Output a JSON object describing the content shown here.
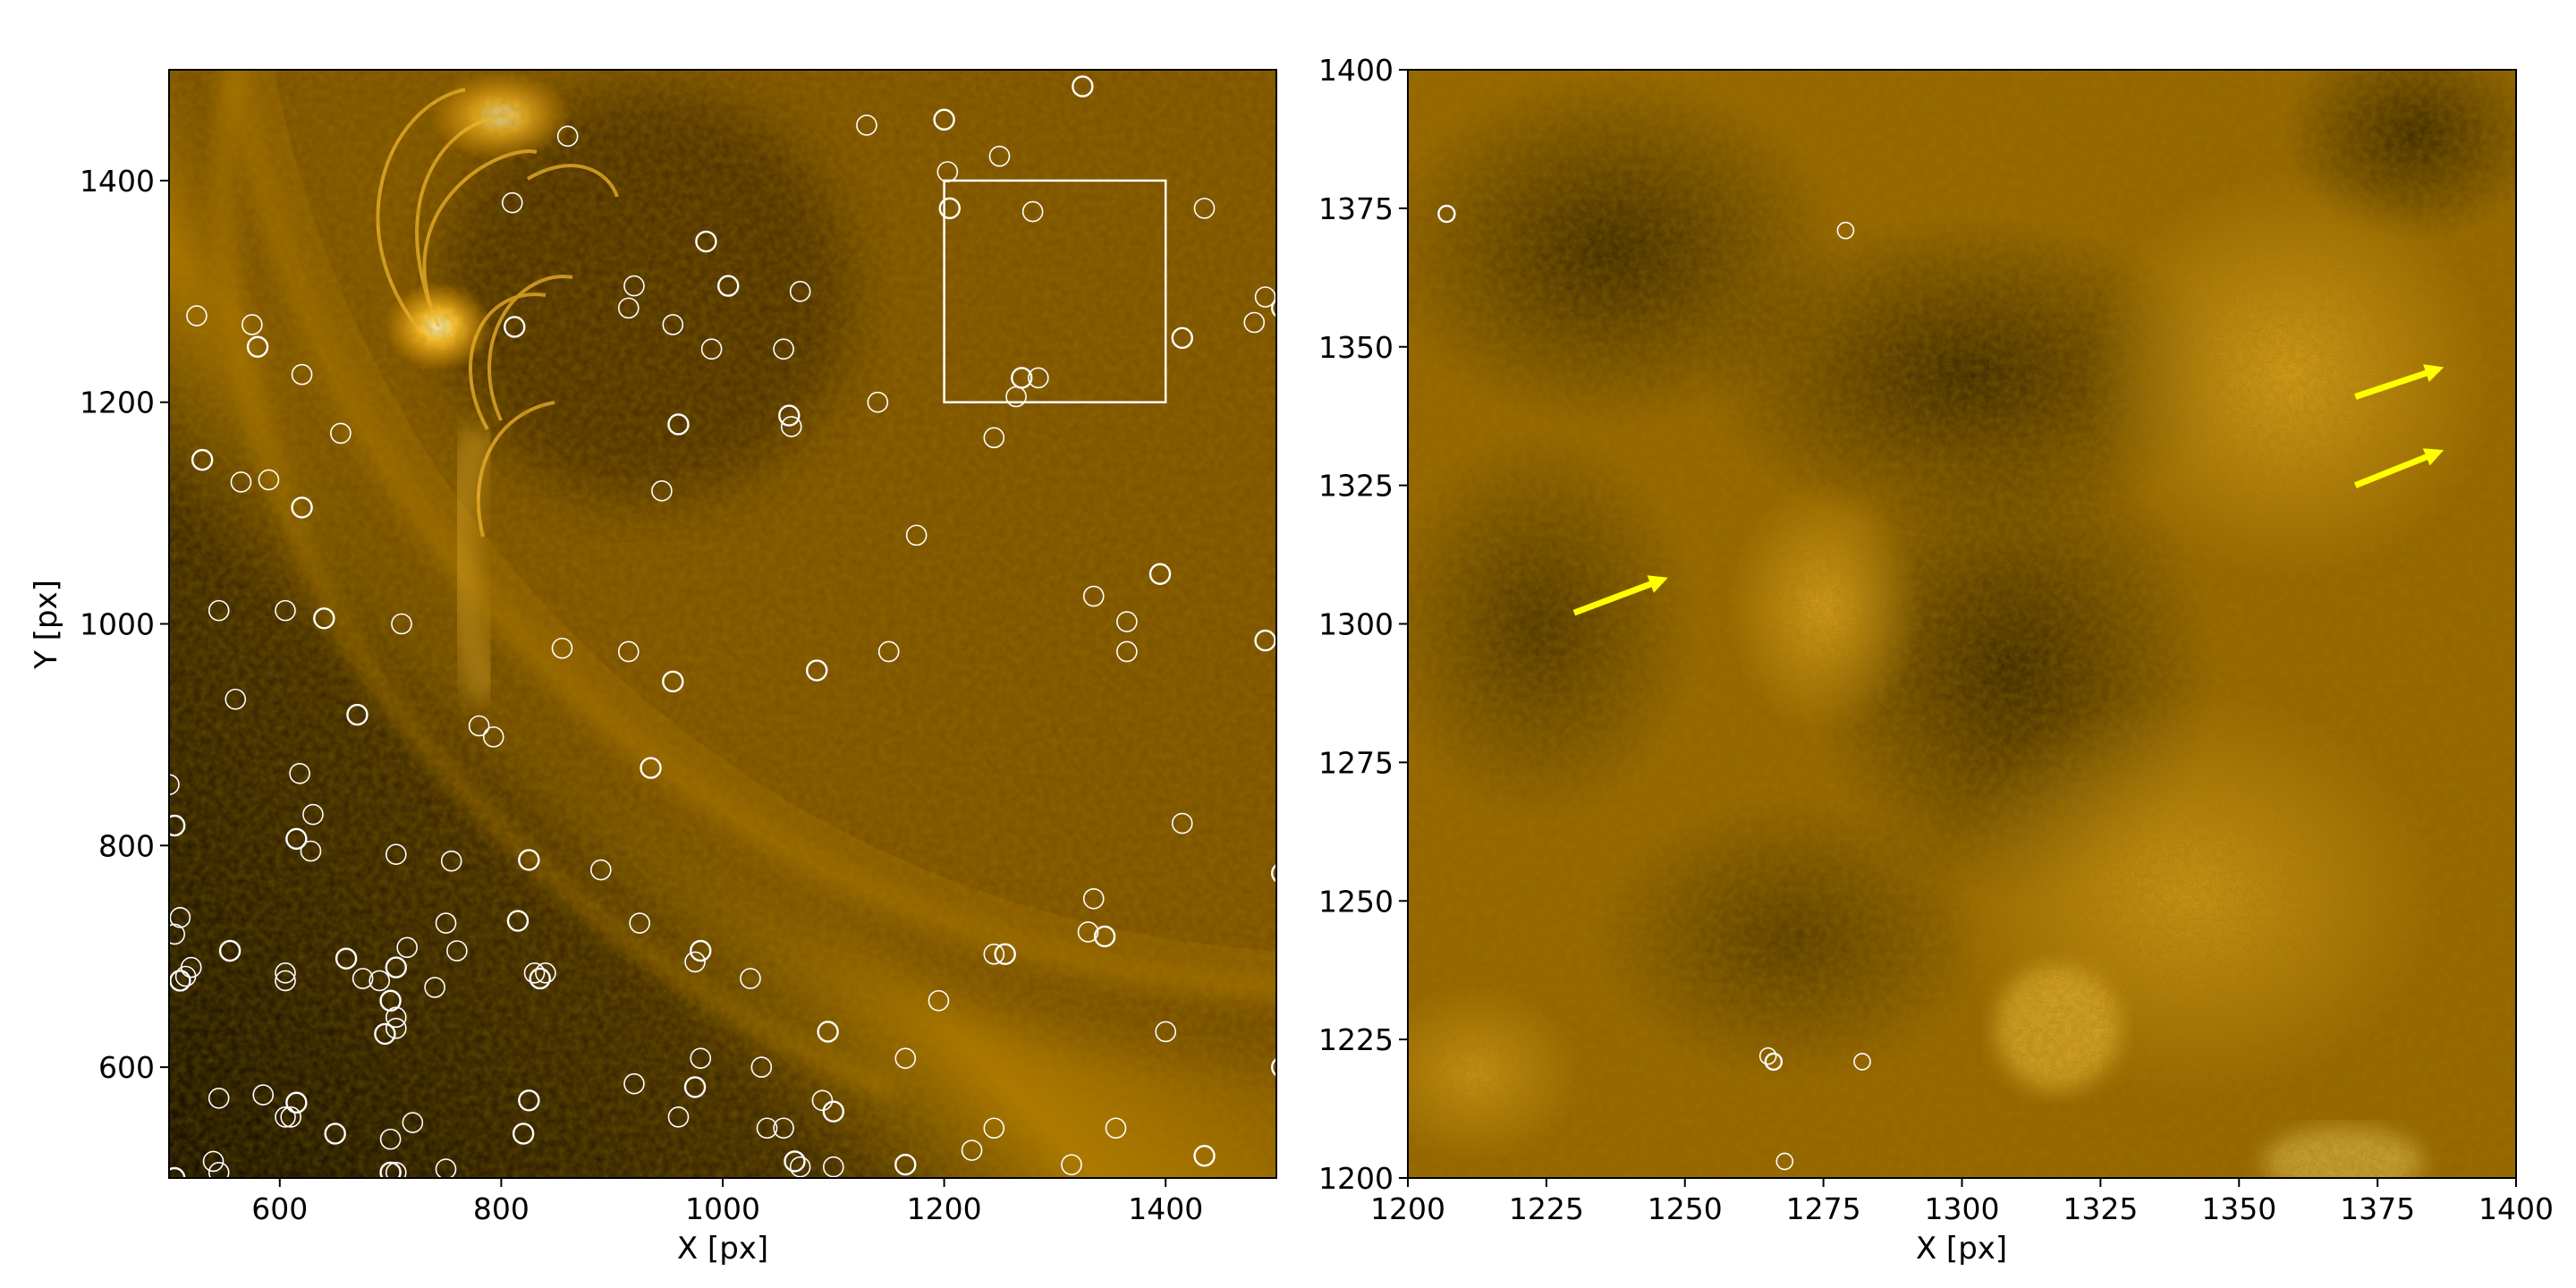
{
  "chart_data": [
    {
      "type": "scatter",
      "panel": "left",
      "background": "solar EUV image, orange-gold colormap, solar limb arc with bright coronal loops in upper-left",
      "xlabel": "X [px]",
      "ylabel": "Y [px]",
      "xlim": [
        500,
        1500
      ],
      "ylim": [
        500,
        1500
      ],
      "xticks": [
        "600",
        "800",
        "1000",
        "1200",
        "1400"
      ],
      "yticks": [
        "600",
        "800",
        "1000",
        "1200",
        "1400"
      ],
      "marker": "open circle",
      "marker_color": "#ffffff",
      "zoom_box": {
        "x0": 1200,
        "x1": 1400,
        "y0": 1200,
        "y1": 1400,
        "color": "#ffffff"
      },
      "points": [
        [
          1200,
          1455
        ],
        [
          1250,
          1422
        ],
        [
          1203,
          1408
        ],
        [
          1205,
          1375
        ],
        [
          1280,
          1372
        ],
        [
          1435,
          1375
        ],
        [
          1325,
          1485
        ],
        [
          1130,
          1450
        ],
        [
          860,
          1440
        ],
        [
          985,
          1345
        ],
        [
          915,
          1285
        ],
        [
          920,
          1305
        ],
        [
          1005,
          1305
        ],
        [
          1070,
          1300
        ],
        [
          955,
          1270
        ],
        [
          1415,
          1258
        ],
        [
          1490,
          1295
        ],
        [
          1480,
          1272
        ],
        [
          1505,
          1285
        ],
        [
          525,
          1278
        ],
        [
          575,
          1270
        ],
        [
          580,
          1250
        ],
        [
          620,
          1225
        ],
        [
          810,
          1380
        ],
        [
          812,
          1268
        ],
        [
          990,
          1248
        ],
        [
          1055,
          1248
        ],
        [
          1270,
          1222
        ],
        [
          1285,
          1222
        ],
        [
          1265,
          1205
        ],
        [
          1060,
          1188
        ],
        [
          1062,
          1178
        ],
        [
          1140,
          1200
        ],
        [
          960,
          1180
        ],
        [
          1245,
          1168
        ],
        [
          655,
          1172
        ],
        [
          530,
          1148
        ],
        [
          565,
          1128
        ],
        [
          590,
          1130
        ],
        [
          620,
          1105
        ],
        [
          945,
          1120
        ],
        [
          1175,
          1080
        ],
        [
          1395,
          1045
        ],
        [
          1335,
          1025
        ],
        [
          1365,
          1002
        ],
        [
          1490,
          985
        ],
        [
          1365,
          975
        ],
        [
          1150,
          975
        ],
        [
          1085,
          958
        ],
        [
          855,
          978
        ],
        [
          915,
          975
        ],
        [
          955,
          948
        ],
        [
          545,
          1012
        ],
        [
          605,
          1012
        ],
        [
          640,
          1005
        ],
        [
          710,
          1000
        ],
        [
          560,
          932
        ],
        [
          670,
          918
        ],
        [
          780,
          908
        ],
        [
          793,
          898
        ],
        [
          935,
          870
        ],
        [
          618,
          865
        ],
        [
          630,
          828
        ],
        [
          615,
          806
        ],
        [
          628,
          795
        ],
        [
          500,
          855
        ],
        [
          505,
          818
        ],
        [
          705,
          792
        ],
        [
          755,
          786
        ],
        [
          825,
          787
        ],
        [
          890,
          778
        ],
        [
          1415,
          820
        ],
        [
          1505,
          775
        ],
        [
          510,
          735
        ],
        [
          505,
          720
        ],
        [
          555,
          705
        ],
        [
          520,
          690
        ],
        [
          515,
          682
        ],
        [
          510,
          678
        ],
        [
          605,
          685
        ],
        [
          605,
          678
        ],
        [
          660,
          698
        ],
        [
          675,
          680
        ],
        [
          690,
          678
        ],
        [
          700,
          660
        ],
        [
          705,
          645
        ],
        [
          705,
          635
        ],
        [
          695,
          630
        ],
        [
          740,
          672
        ],
        [
          715,
          708
        ],
        [
          705,
          690
        ],
        [
          760,
          705
        ],
        [
          750,
          730
        ],
        [
          815,
          732
        ],
        [
          830,
          685
        ],
        [
          840,
          685
        ],
        [
          835,
          680
        ],
        [
          925,
          730
        ],
        [
          975,
          695
        ],
        [
          980,
          705
        ],
        [
          1025,
          680
        ],
        [
          1245,
          702
        ],
        [
          1255,
          702
        ],
        [
          1335,
          752
        ],
        [
          1330,
          722
        ],
        [
          1345,
          718
        ],
        [
          1195,
          660
        ],
        [
          1400,
          632
        ],
        [
          1095,
          632
        ],
        [
          980,
          608
        ],
        [
          1035,
          600
        ],
        [
          975,
          582
        ],
        [
          920,
          585
        ],
        [
          1165,
          608
        ],
        [
          1505,
          600
        ],
        [
          545,
          572
        ],
        [
          585,
          575
        ],
        [
          615,
          568
        ],
        [
          605,
          555
        ],
        [
          610,
          555
        ],
        [
          825,
          570
        ],
        [
          960,
          555
        ],
        [
          1090,
          570
        ],
        [
          1100,
          560
        ],
        [
          1040,
          545
        ],
        [
          1055,
          545
        ],
        [
          650,
          540
        ],
        [
          700,
          535
        ],
        [
          720,
          550
        ],
        [
          820,
          540
        ],
        [
          1245,
          545
        ],
        [
          1355,
          545
        ],
        [
          505,
          500
        ],
        [
          540,
          515
        ],
        [
          545,
          505
        ],
        [
          700,
          505
        ],
        [
          705,
          505
        ],
        [
          750,
          508
        ],
        [
          1065,
          515
        ],
        [
          1070,
          510
        ],
        [
          1100,
          510
        ],
        [
          1165,
          512
        ],
        [
          1225,
          525
        ],
        [
          1315,
          512
        ],
        [
          1435,
          520
        ]
      ]
    },
    {
      "type": "scatter",
      "panel": "right",
      "background": "zoomed solar EUV image, orange-gold colormap, pixelated texture",
      "xlabel": "X [px]",
      "ylabel": "",
      "xlim": [
        1200,
        1400
      ],
      "ylim": [
        1200,
        1400
      ],
      "xticks": [
        "1200",
        "1225",
        "1250",
        "1275",
        "1300",
        "1325",
        "1350",
        "1375",
        "1400"
      ],
      "yticks": [
        "1200",
        "1225",
        "1250",
        "1275",
        "1300",
        "1325",
        "1350",
        "1375",
        "1400"
      ],
      "marker": "open circle",
      "marker_color": "#ffffff",
      "points": [
        [
          1207,
          1374
        ],
        [
          1279,
          1371
        ],
        [
          1265,
          1222
        ],
        [
          1266,
          1221
        ],
        [
          1282,
          1221
        ],
        [
          1268,
          1203
        ]
      ],
      "arrow_color": "#ffff00",
      "arrows": [
        {
          "from": [
            1230,
            1302
          ],
          "to": [
            1246,
            1308
          ]
        },
        {
          "from": [
            1371,
            1341
          ],
          "to": [
            1386,
            1346
          ]
        },
        {
          "from": [
            1371,
            1325
          ],
          "to": [
            1386,
            1331
          ]
        }
      ]
    }
  ]
}
